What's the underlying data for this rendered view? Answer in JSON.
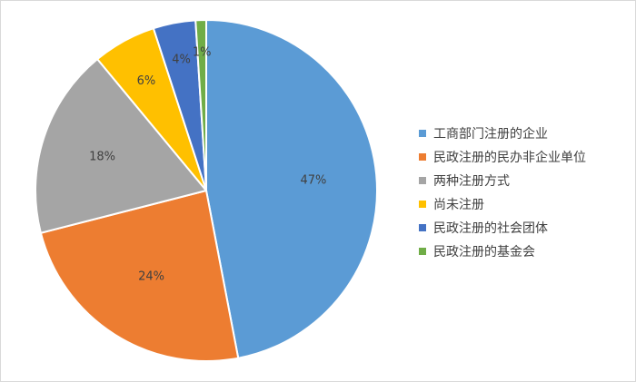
{
  "chart_data": {
    "type": "pie",
    "categories": [
      "工商部门注册的企业",
      "民政注册的民办非企业单位",
      "两种注册方式",
      "尚未注册",
      "民政注册的社会团体",
      "民政注册的基金会"
    ],
    "values": [
      47,
      24,
      18,
      6,
      4,
      1
    ],
    "labels": [
      "47%",
      "24%",
      "18%",
      "6%",
      "4%",
      "1%"
    ],
    "colors": [
      "#5b9bd5",
      "#ed7d31",
      "#a5a5a5",
      "#ffc000",
      "#4472c4",
      "#70ad47"
    ],
    "legend_position": "right"
  }
}
